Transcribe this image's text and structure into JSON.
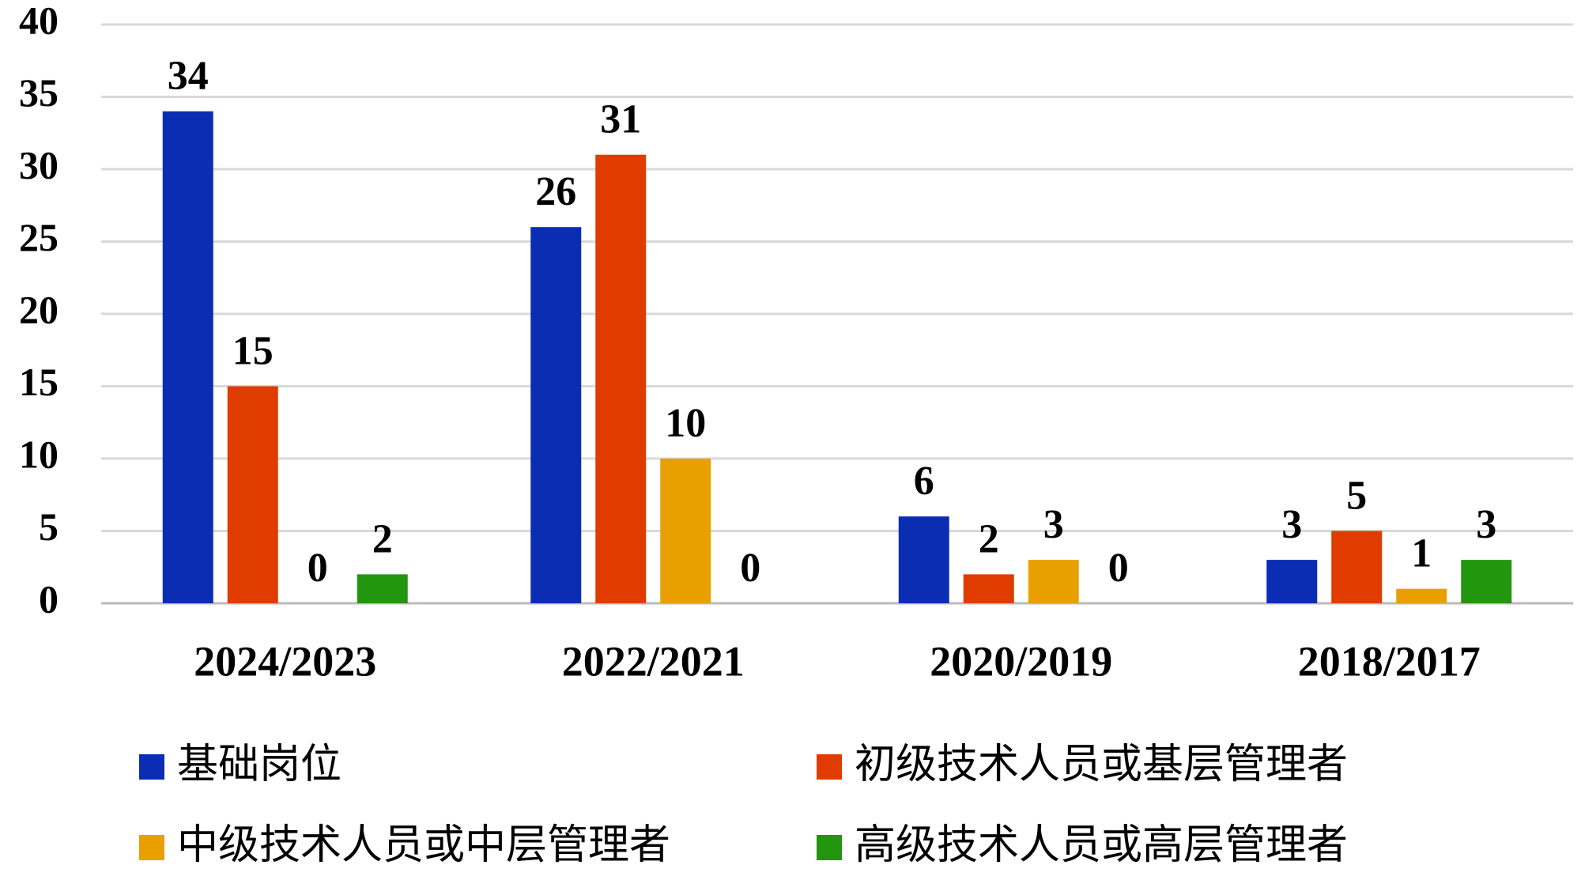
{
  "chart_data": {
    "type": "bar",
    "categories": [
      "2024/2023",
      "2022/2021",
      "2020/2019",
      "2018/2017"
    ],
    "series": [
      {
        "name": "基础岗位",
        "color": "#0a2db4",
        "values": [
          34,
          26,
          6,
          3
        ]
      },
      {
        "name": "初级技术人员或基层管理者",
        "color": "#e03c00",
        "values": [
          15,
          31,
          2,
          5
        ]
      },
      {
        "name": "中级技术人员或中层管理者",
        "color": "#e8a000",
        "values": [
          0,
          10,
          3,
          1
        ]
      },
      {
        "name": "高级技术人员或高层管理者",
        "color": "#22960e",
        "values": [
          2,
          0,
          0,
          3
        ]
      }
    ],
    "ylim": [
      0,
      40
    ],
    "yticks": [
      0,
      5,
      10,
      15,
      20,
      25,
      30,
      35,
      40
    ],
    "grid": true
  }
}
